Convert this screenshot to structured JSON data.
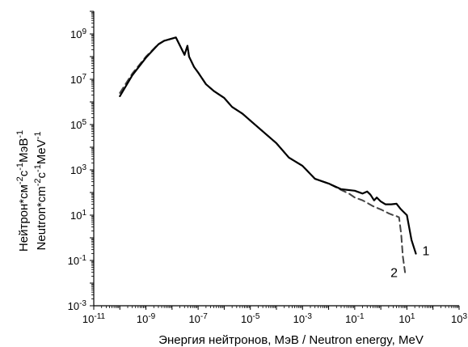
{
  "chart_data": {
    "type": "line",
    "title": "",
    "xlabel": "Энергия нейтронов, МэВ / Neutron energy, MeV",
    "ylabel": {
      "line1": {
        "base": "Нейтрон*см",
        "exp1": "-2",
        "mid": "с",
        "exp2": "-1",
        "unit": "МэВ",
        "exp3": "-1"
      },
      "line2": {
        "base": "Neutron*cm",
        "exp1": "-2",
        "mid": "c",
        "exp2": "-1",
        "unit": "MeV",
        "exp3": "-1"
      }
    },
    "x_scale": "log",
    "y_scale": "log",
    "xlim": [
      1e-11,
      1000
    ],
    "ylim": [
      0.001,
      10000000000
    ],
    "grid": false,
    "x_ticks": [
      {
        "exp": -11,
        "base": "10",
        "sup": "-11"
      },
      {
        "exp": -9,
        "base": "10",
        "sup": "-9"
      },
      {
        "exp": -7,
        "base": "10",
        "sup": "-7"
      },
      {
        "exp": -5,
        "base": "10",
        "sup": "-5"
      },
      {
        "exp": -3,
        "base": "10",
        "sup": "-3"
      },
      {
        "exp": -1,
        "base": "10",
        "sup": "-1"
      },
      {
        "exp": 1,
        "base": "10",
        "sup": "1"
      },
      {
        "exp": 3,
        "base": "10",
        "sup": "3"
      }
    ],
    "y_ticks": [
      {
        "exp": -3,
        "base": "10",
        "sup": "-3"
      },
      {
        "exp": -1,
        "base": "10",
        "sup": "-1"
      },
      {
        "exp": 1,
        "base": "10",
        "sup": "1"
      },
      {
        "exp": 3,
        "base": "10",
        "sup": "3"
      },
      {
        "exp": 5,
        "base": "10",
        "sup": "5"
      },
      {
        "exp": 7,
        "base": "10",
        "sup": "7"
      },
      {
        "exp": 9,
        "base": "10",
        "sup": "9"
      }
    ],
    "series": [
      {
        "name": "1",
        "style": "solid",
        "color": "#000000",
        "x": [
          1e-10,
          3e-10,
          1e-09,
          3e-09,
          5e-09,
          1.4e-08,
          3e-08,
          3.9e-08,
          4.5e-08,
          7e-08,
          1e-07,
          2e-07,
          4e-07,
          1e-06,
          2e-06,
          5e-06,
          1e-05,
          3e-05,
          0.0001,
          0.0003,
          0.001,
          0.003,
          0.01,
          0.03,
          0.1,
          0.2,
          0.3,
          0.4,
          0.55,
          0.7,
          1,
          1.5,
          2.5,
          4,
          5.5,
          7,
          10,
          15,
          22
        ],
        "y": [
          1800000.0,
          15000000.0,
          90000000.0,
          350000000.0,
          500000000.0,
          700000000.0,
          120000000.0,
          300000000.0,
          100000000.0,
          35000000.0,
          20000000.0,
          6000000.0,
          3000000.0,
          1500000.0,
          600000.0,
          300000.0,
          150000.0,
          50000.0,
          15000.0,
          3500.0,
          1500.0,
          400.0,
          250.0,
          140.0,
          120.0,
          90,
          110,
          80,
          45,
          60,
          40,
          30,
          30,
          32,
          20,
          15,
          10,
          0.8,
          0.2
        ]
      },
      {
        "name": "2",
        "style": "dashed",
        "color": "#444444",
        "x": [
          1e-10,
          3e-10,
          1e-09,
          3e-09,
          5e-09,
          1.4e-08,
          3e-08,
          3.9e-08,
          4.5e-08,
          7e-08,
          1e-07,
          2e-07,
          4e-07,
          1e-06,
          2e-06,
          5e-06,
          1e-05,
          3e-05,
          0.0001,
          0.0003,
          0.001,
          0.003,
          0.01,
          0.03,
          0.06,
          0.1,
          0.2,
          0.3,
          0.5,
          1,
          2,
          3,
          4,
          5,
          6,
          7,
          8.5
        ],
        "y": [
          2500000.0,
          18000000.0,
          100000000.0,
          360000000.0,
          500000000.0,
          700000000.0,
          120000000.0,
          300000000.0,
          100000000.0,
          35000000.0,
          20000000.0,
          6000000.0,
          3000000.0,
          1500000.0,
          600000.0,
          300000.0,
          150000.0,
          50000.0,
          15000.0,
          3500.0,
          1500.0,
          400.0,
          250.0,
          130.0,
          90,
          60,
          45,
          35,
          25,
          18,
          12,
          10,
          9,
          8,
          1.5,
          0.15,
          0.03
        ]
      }
    ]
  }
}
